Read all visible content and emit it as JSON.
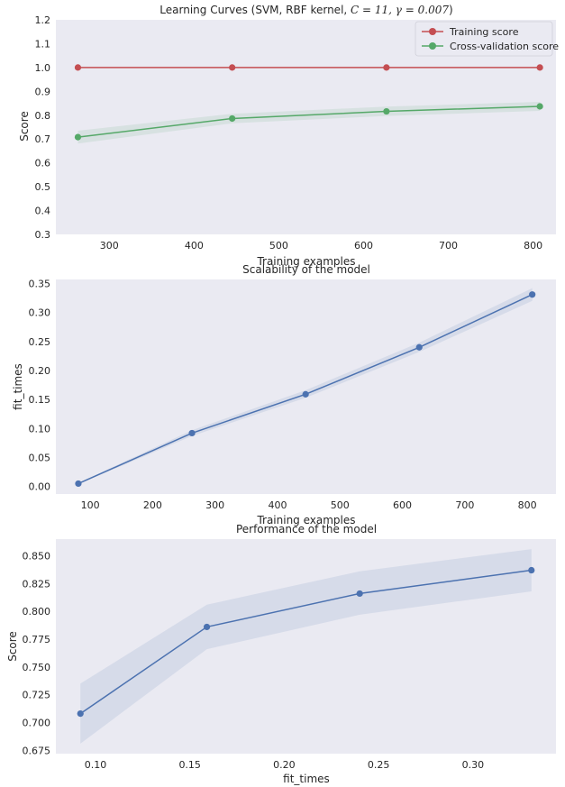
{
  "colors": {
    "axes_bg": "#eaeaf2",
    "training": "#c44e52",
    "cv": "#55a868",
    "blue": "#4c72b0",
    "text": "#262626"
  },
  "chart_data": [
    {
      "id": "learning",
      "type": "line",
      "title_pre": "Learning Curves (SVM, RBF kernel, ",
      "title_math": "C = 11, γ = 0.007",
      "title_post": ")",
      "xlabel": "Training examples",
      "ylabel": "Score",
      "xlim": [
        237,
        827
      ],
      "ylim": [
        0.3,
        1.2
      ],
      "xticks": [
        300,
        400,
        500,
        600,
        700,
        800
      ],
      "yticks": [
        0.3,
        0.4,
        0.5,
        0.6,
        0.7,
        0.8,
        0.9,
        1.0,
        1.1,
        1.2
      ],
      "ytick_labels": [
        "0.3",
        "0.4",
        "0.5",
        "0.6",
        "0.7",
        "0.8",
        "0.9",
        "1.0",
        "1.1",
        "1.2"
      ],
      "legend_position": "top-right",
      "series": [
        {
          "name": "Training score",
          "color": "#c44e52",
          "x": [
            263,
            445,
            627,
            808
          ],
          "y": [
            1.0,
            1.0,
            1.0,
            1.0
          ],
          "lower": [
            1.0,
            1.0,
            1.0,
            1.0
          ],
          "upper": [
            1.0,
            1.0,
            1.0,
            1.0
          ]
        },
        {
          "name": "Cross-validation score",
          "color": "#55a868",
          "x": [
            263,
            445,
            627,
            808
          ],
          "y": [
            0.708,
            0.786,
            0.816,
            0.837
          ],
          "lower": [
            0.681,
            0.766,
            0.797,
            0.818
          ],
          "upper": [
            0.735,
            0.806,
            0.836,
            0.856
          ]
        }
      ]
    },
    {
      "id": "scalability",
      "type": "line",
      "title": "Scalability of the model",
      "xlabel": "Training examples",
      "ylabel": "fit_times",
      "xlim": [
        45,
        846
      ],
      "ylim": [
        -0.013,
        0.357
      ],
      "xticks": [
        100,
        200,
        300,
        400,
        500,
        600,
        700,
        800
      ],
      "yticks": [
        0.0,
        0.05,
        0.1,
        0.15,
        0.2,
        0.25,
        0.3,
        0.35
      ],
      "ytick_labels": [
        "0.00",
        "0.05",
        "0.10",
        "0.15",
        "0.20",
        "0.25",
        "0.30",
        "0.35"
      ],
      "series": [
        {
          "name": "fit_times",
          "color": "#4c72b0",
          "x": [
            81,
            263,
            445,
            627,
            808
          ],
          "y": [
            0.005,
            0.092,
            0.159,
            0.24,
            0.331
          ],
          "lower": [
            0.004,
            0.087,
            0.153,
            0.232,
            0.32
          ],
          "upper": [
            0.006,
            0.097,
            0.166,
            0.248,
            0.342
          ]
        }
      ]
    },
    {
      "id": "performance",
      "type": "line",
      "title": "Performance of the model",
      "xlabel": "fit_times",
      "ylabel": "Score",
      "xlim": [
        0.079,
        0.344
      ],
      "ylim": [
        0.672,
        0.865
      ],
      "xticks": [
        0.1,
        0.15,
        0.2,
        0.25,
        0.3
      ],
      "yticks": [
        0.675,
        0.7,
        0.725,
        0.75,
        0.775,
        0.8,
        0.825,
        0.85
      ],
      "ytick_labels": [
        "0.675",
        "0.700",
        "0.725",
        "0.750",
        "0.775",
        "0.800",
        "0.825",
        "0.850"
      ],
      "xtick_labels": [
        "0.10",
        "0.15",
        "0.20",
        "0.25",
        "0.30"
      ],
      "series": [
        {
          "name": "score",
          "color": "#4c72b0",
          "x": [
            0.092,
            0.159,
            0.24,
            0.331
          ],
          "y": [
            0.708,
            0.786,
            0.816,
            0.837
          ],
          "lower": [
            0.681,
            0.766,
            0.797,
            0.818
          ],
          "upper": [
            0.735,
            0.806,
            0.836,
            0.856
          ]
        }
      ]
    }
  ]
}
